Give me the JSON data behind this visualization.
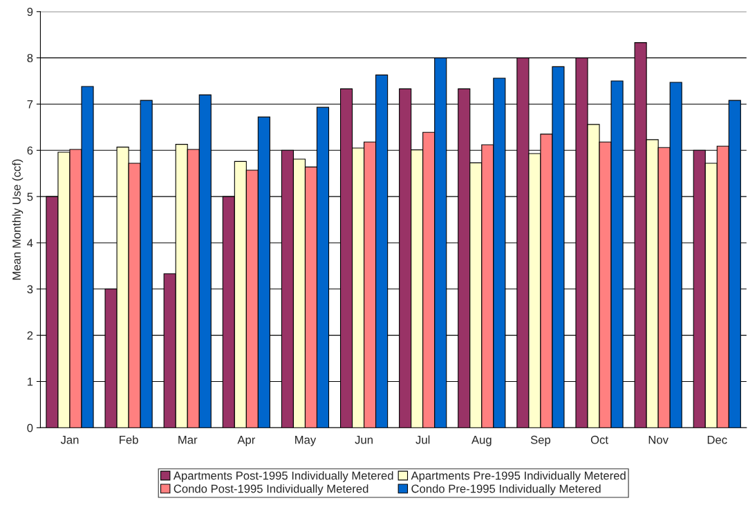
{
  "chart_data": {
    "type": "bar",
    "ylabel": "Mean Monthly Use (ccf)",
    "categories": [
      "Jan",
      "Feb",
      "Mar",
      "Apr",
      "May",
      "Jun",
      "Jul",
      "Aug",
      "Sep",
      "Oct",
      "Nov",
      "Dec"
    ],
    "series": [
      {
        "name": "Apartments Post-1995 Individually Metered",
        "color": "#993366",
        "values": [
          5.0,
          3.0,
          3.33,
          5.0,
          6.0,
          7.33,
          7.33,
          7.33,
          8.0,
          8.0,
          8.33,
          6.0
        ]
      },
      {
        "name": "Apartments Pre-1995 Individually Metered",
        "color": "#ffffcc",
        "values": [
          5.96,
          6.07,
          6.13,
          5.76,
          5.81,
          6.05,
          6.01,
          5.73,
          5.93,
          6.56,
          6.23,
          5.72
        ]
      },
      {
        "name": "Condo Post-1995 Individually Metered",
        "color": "#ff8080",
        "values": [
          6.02,
          5.72,
          6.02,
          5.57,
          5.64,
          6.18,
          6.39,
          6.12,
          6.35,
          6.18,
          6.06,
          6.09
        ]
      },
      {
        "name": "Condo Pre-1995 Individually Metered",
        "color": "#0066cc",
        "values": [
          7.38,
          7.08,
          7.2,
          6.72,
          6.93,
          7.63,
          8.0,
          7.56,
          7.81,
          7.5,
          7.47,
          7.08
        ]
      }
    ],
    "ylim": [
      0,
      9
    ],
    "yticks": [
      0,
      1,
      2,
      3,
      4,
      5,
      6,
      7,
      8,
      9
    ],
    "grid": "y",
    "legend": "bottom"
  }
}
